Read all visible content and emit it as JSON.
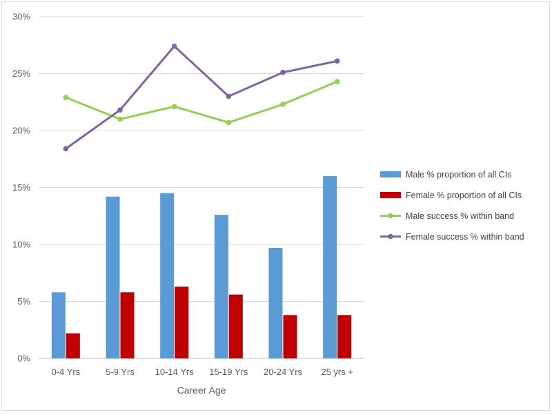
{
  "chart_data": {
    "type": "bar",
    "categories": [
      "0-4 Yrs",
      "5-9 Yrs",
      "10-14 Yrs",
      "15-19 Yrs",
      "20-24 Yrs",
      "25 yrs +"
    ],
    "xlabel": "Career Age",
    "ylabel": "",
    "ylim": [
      0,
      30
    ],
    "y_ticks": [
      "0%",
      "5%",
      "10%",
      "15%",
      "20%",
      "25%",
      "30%"
    ],
    "y_tick_values": [
      0,
      5,
      10,
      15,
      20,
      25,
      30
    ],
    "grid": true,
    "legend_position": "right",
    "series": [
      {
        "name": "Male % proportion of all CIs",
        "kind": "bar",
        "color": "#5b9bd5",
        "values": [
          5.8,
          14.2,
          14.5,
          12.6,
          9.7,
          16.0
        ]
      },
      {
        "name": "Female % proportion of all CIs",
        "kind": "bar",
        "color": "#c00000",
        "values": [
          2.2,
          5.8,
          6.3,
          5.6,
          3.8,
          3.8
        ]
      },
      {
        "name": "Male success % within band",
        "kind": "line",
        "color": "#92d050",
        "values": [
          22.9,
          21.0,
          22.1,
          20.7,
          22.3,
          24.3
        ]
      },
      {
        "name": "Female success % within band",
        "kind": "line",
        "color": "#8064a2",
        "values": [
          18.4,
          21.8,
          27.4,
          23.0,
          25.1,
          26.1
        ]
      }
    ]
  }
}
